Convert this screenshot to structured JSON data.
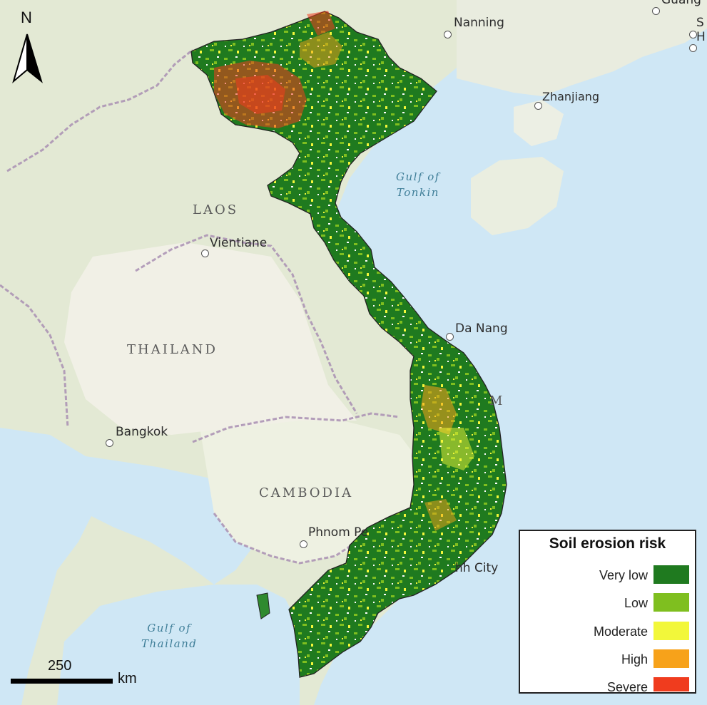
{
  "map": {
    "legend": {
      "title": "Soil erosion risk",
      "classes": [
        {
          "label": "Very low",
          "color": "#1f7a1f"
        },
        {
          "label": "Low",
          "color": "#7fbf1f"
        },
        {
          "label": "Moderate",
          "color": "#f2f73a"
        },
        {
          "label": "High",
          "color": "#f7a21a"
        },
        {
          "label": "Severe",
          "color": "#f03c1e"
        }
      ]
    },
    "north_arrow": {
      "letter": "N"
    },
    "scale_bar": {
      "value": "250",
      "unit": "km"
    },
    "places": {
      "nanning": "Nanning",
      "zhanjiang": "Zhanjiang",
      "guang": "Guang",
      "s_label": "S",
      "h_label": "H",
      "vientiane": "Vientiane",
      "da_nang": "Da Nang",
      "bangkok": "Bangkok",
      "phnom_penh": "Phnom Pe",
      "hcm_city": "hh City",
      "vietnam_partial": "M"
    },
    "countries": {
      "laos": "LAOS",
      "thailand": "THAILAND",
      "cambodia": "CAMBODIA"
    },
    "water_bodies": {
      "gulf_of_tonkin": [
        "Gulf of",
        "Tonkin"
      ],
      "gulf_of_thailand": [
        "Gulf of",
        "Thailand"
      ]
    },
    "colors": {
      "sea": "#cfe7f5",
      "land": "#f1f0e6",
      "terrain": "#e2e8d2",
      "border": "#a98fb3"
    }
  }
}
